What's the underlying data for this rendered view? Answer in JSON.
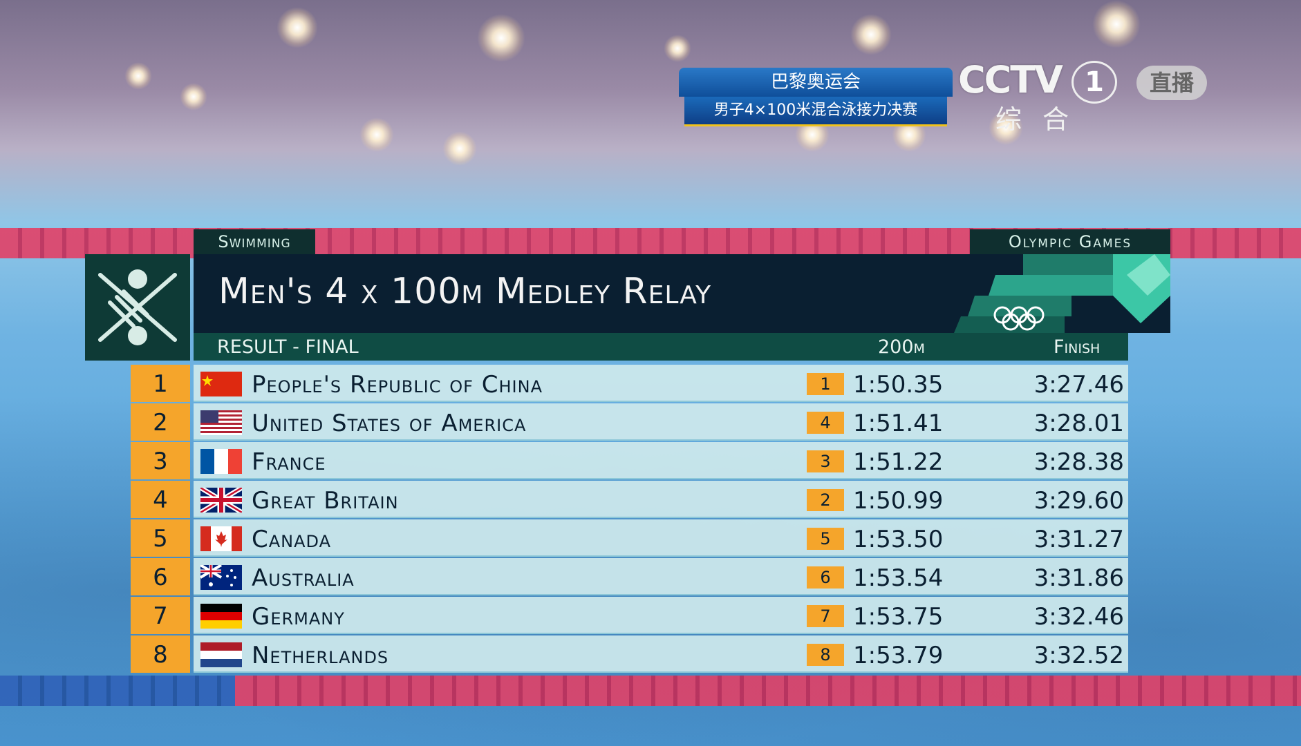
{
  "broadcast": {
    "event_cn": "巴黎奥运会",
    "race_cn": "男子4×100米混合泳接力决赛",
    "channel_logo": "CCTV",
    "channel_number": "1",
    "channel_name": "综合",
    "live_badge": "直播"
  },
  "graphic": {
    "sport_tag": "Swimming",
    "games_tag": "Olympic Games",
    "title": "Men's 4 x 100m Medley Relay",
    "subtitle": "RESULT - FINAL",
    "col_split": "200m",
    "col_finish": "Finish",
    "pictogram_icon": "swimming-pictogram-icon",
    "olympic_rings_icon": "olympic-rings-icon",
    "colors": {
      "panel_dark": "#0a1f31",
      "header_green": "#0f4c44",
      "rank_orange": "#f5a52b",
      "row_bg": "#cde8ec"
    }
  },
  "results": [
    {
      "rank": "1",
      "country": "People's Republic of China",
      "flag": "flag-china-icon",
      "split_rank": "1",
      "split": "1:50.35",
      "finish": "3:27.46"
    },
    {
      "rank": "2",
      "country": "United States of America",
      "flag": "flag-usa-icon",
      "split_rank": "4",
      "split": "1:51.41",
      "finish": "3:28.01"
    },
    {
      "rank": "3",
      "country": "France",
      "flag": "flag-france-icon",
      "split_rank": "3",
      "split": "1:51.22",
      "finish": "3:28.38"
    },
    {
      "rank": "4",
      "country": "Great Britain",
      "flag": "flag-great-britain-icon",
      "split_rank": "2",
      "split": "1:50.99",
      "finish": "3:29.60"
    },
    {
      "rank": "5",
      "country": "Canada",
      "flag": "flag-canada-icon",
      "split_rank": "5",
      "split": "1:53.50",
      "finish": "3:31.27"
    },
    {
      "rank": "6",
      "country": "Australia",
      "flag": "flag-australia-icon",
      "split_rank": "6",
      "split": "1:53.54",
      "finish": "3:31.86"
    },
    {
      "rank": "7",
      "country": "Germany",
      "flag": "flag-germany-icon",
      "split_rank": "7",
      "split": "1:53.75",
      "finish": "3:32.46"
    },
    {
      "rank": "8",
      "country": "Netherlands",
      "flag": "flag-netherlands-icon",
      "split_rank": "8",
      "split": "1:53.79",
      "finish": "3:32.52"
    }
  ]
}
